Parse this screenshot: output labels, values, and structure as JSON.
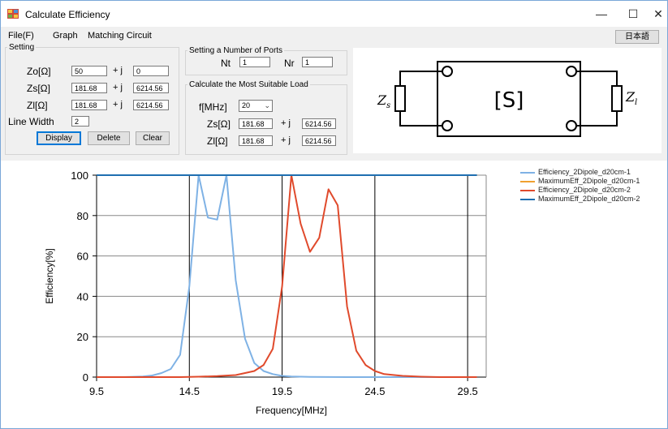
{
  "window": {
    "title": "Calculate Efficiency",
    "minimize": "—",
    "maximize": "☐",
    "close": "✕"
  },
  "menu": {
    "file": "File(F)",
    "graph": "Graph",
    "matching": "Matching Circuit",
    "language_button": "日本語"
  },
  "setting": {
    "legend": "Setting",
    "zo_label": "Zo[Ω]",
    "zo_re": "50",
    "zo_im": "0",
    "zs_label": "Zs[Ω]",
    "zs_re": "181.68",
    "zs_im": "6214.56",
    "zl_label": "Zl[Ω]",
    "zl_re": "181.68",
    "zl_im": "6214.56",
    "plus_j": "+  j",
    "line_width_label": "Line Width",
    "line_width": "2",
    "display_button": "Display",
    "delete_button": "Delete",
    "clear_button": "Clear"
  },
  "ports": {
    "legend": "Setting a Number of Ports",
    "nt_label": "Nt",
    "nt": "1",
    "nr_label": "Nr",
    "nr": "1"
  },
  "load": {
    "legend": "Calculate the Most Suitable Load",
    "f_label": "f[MHz]",
    "f_value": "20",
    "zs_label": "Zs[Ω]",
    "zs_re": "181.68",
    "zs_im": "6214.56",
    "zl_label": "Zl[Ω]",
    "zl_re": "181.68",
    "zl_im": "6214.56",
    "plus_j": "+  j"
  },
  "diagram": {
    "block_label": "[S]",
    "zs": "Z",
    "zs_sub": "s",
    "zl": "Z",
    "zl_sub": "l"
  },
  "chart_data": {
    "type": "line",
    "title": "",
    "xlabel": "Frequency[MHz]",
    "ylabel": "Efficiency[%]",
    "xlim": [
      9.5,
      30.5
    ],
    "ylim": [
      0,
      100
    ],
    "xticks": [
      9.5,
      14.5,
      19.5,
      24.5,
      29.5
    ],
    "yticks": [
      0,
      20,
      40,
      60,
      80,
      100
    ],
    "grid": true,
    "legend_position": "top-right",
    "series": [
      {
        "name": "Efficiency_2Dipole_d20cm-1",
        "color": "#7fb2e5",
        "x": [
          9.5,
          11,
          12,
          12.5,
          13,
          13.5,
          14,
          14.5,
          15,
          15.5,
          16,
          16.5,
          17,
          17.5,
          18,
          18.5,
          19,
          19.5,
          20,
          21,
          23,
          30
        ],
        "y": [
          0,
          0,
          0.3,
          0.8,
          2,
          4,
          11,
          45,
          100,
          79,
          78,
          100,
          48,
          19,
          7,
          3,
          1.5,
          0.6,
          0.3,
          0.1,
          0,
          0
        ]
      },
      {
        "name": "MaximumEff_2Dipole_d20cm-1",
        "color": "#f0a030",
        "x": [
          9.5,
          30
        ],
        "y": [
          100,
          100
        ]
      },
      {
        "name": "Efficiency_2Dipole_d20cm-2",
        "color": "#e04a2c",
        "x": [
          9.5,
          14,
          15,
          16,
          17,
          17.5,
          18,
          18.5,
          19,
          19.5,
          20,
          20.5,
          21,
          21.5,
          22,
          22.5,
          23,
          23.5,
          24,
          24.5,
          25,
          26,
          27,
          28,
          30
        ],
        "y": [
          0,
          0,
          0.2,
          0.5,
          1,
          2,
          3,
          6,
          14,
          45,
          100,
          76,
          62,
          69,
          93,
          85,
          35,
          13,
          6,
          3,
          1.5,
          0.6,
          0.2,
          0,
          0
        ]
      },
      {
        "name": "MaximumEff_2Dipole_d20cm-2",
        "color": "#1f6fb0",
        "x": [
          9.5,
          30
        ],
        "y": [
          100,
          100
        ]
      }
    ]
  }
}
